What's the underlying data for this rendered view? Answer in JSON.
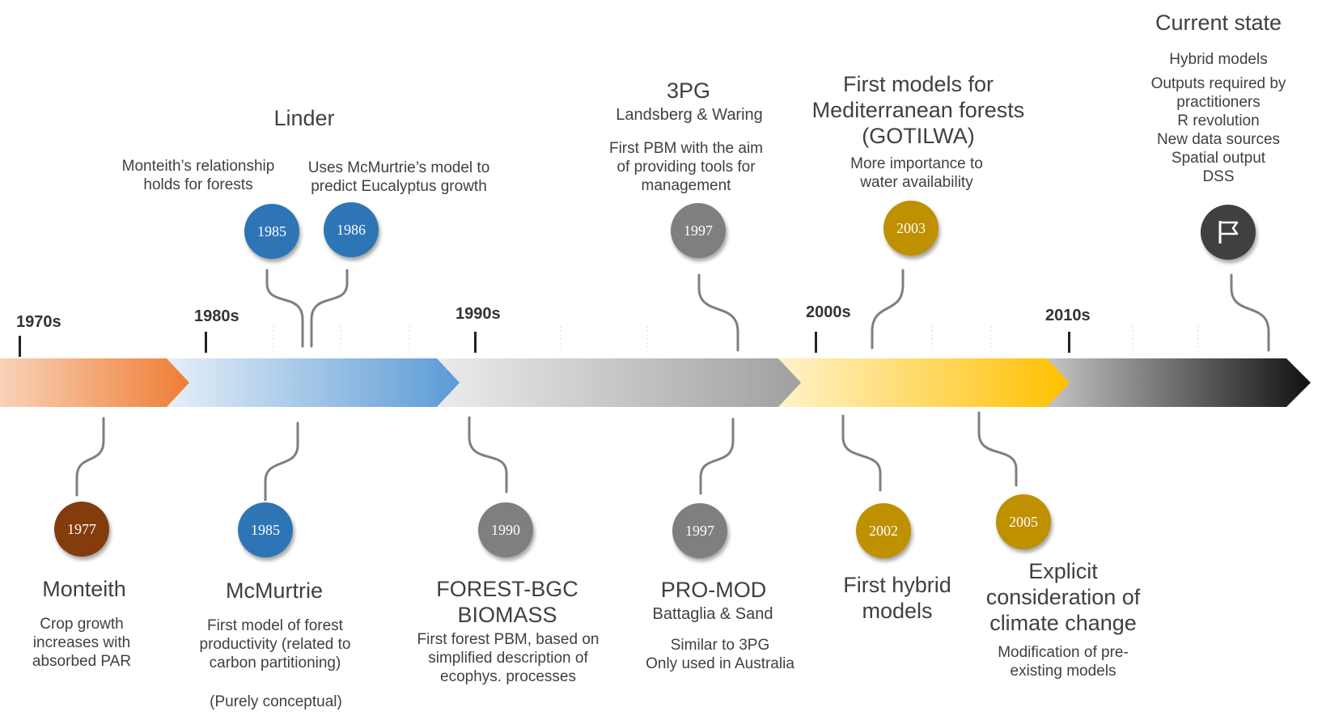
{
  "decades": [
    "1970s",
    "1980s",
    "1990s",
    "2000s",
    "2010s"
  ],
  "colors": {
    "seg1970": [
      "#f9d2b8",
      "#ee7d34"
    ],
    "seg1980": [
      "#dde9f6",
      "#5b9bd5"
    ],
    "seg1990": [
      "#e4e4e4",
      "#a6a6a6"
    ],
    "seg2000": [
      "#fff0c0",
      "#ffc000"
    ],
    "seg2010": [
      "#bfbfbf",
      "#1a1a1a"
    ],
    "blue": "#2e75b6",
    "gray": "#7f7f7f",
    "gold": "#bf9000",
    "brown": "#843c0c",
    "dark": "#404040"
  },
  "top": {
    "linder": {
      "title": "Linder",
      "left_desc": [
        "Monteith’s relationship",
        "holds for forests"
      ],
      "right_desc": [
        "Uses McMurtrie’s model to",
        "predict Eucalyptus growth"
      ],
      "year_a": "1985",
      "year_b": "1986"
    },
    "threepg": {
      "title": "3PG",
      "authors": "Landsberg & Waring",
      "desc": [
        "First PBM with the aim",
        "of providing tools for",
        "management"
      ],
      "year": "1997"
    },
    "gotilwa": {
      "title": [
        "First models for",
        "Mediterranean forests",
        "(GOTILWA)"
      ],
      "desc": [
        "More importance to",
        "water availability"
      ],
      "year": "2003"
    },
    "current": {
      "title": "Current state",
      "items": [
        "Hybrid models",
        "Outputs required by",
        "practitioners",
        "R revolution",
        "New data sources",
        "Spatial output",
        "DSS"
      ],
      "icon": "flag-icon"
    }
  },
  "bottom": {
    "monteith": {
      "year": "1977",
      "title": "Monteith",
      "desc": [
        "Crop growth",
        "increases with",
        "absorbed PAR"
      ]
    },
    "mcmurtrie": {
      "year": "1985",
      "title": "McMurtrie",
      "desc": [
        "First model of forest",
        "productivity (related to",
        "carbon partitioning)"
      ],
      "note": "(Purely conceptual)"
    },
    "forestbgc": {
      "year": "1990",
      "title": [
        "FOREST-BGC",
        "BIOMASS"
      ],
      "desc": [
        "First forest PBM, based on",
        "simplified description of",
        "ecophys. processes"
      ]
    },
    "promod": {
      "year": "1997",
      "title": "PRO-MOD",
      "authors": "Battaglia & Sand",
      "desc": [
        "Similar to 3PG",
        "Only used in Australia"
      ]
    },
    "hybrid": {
      "year": "2002",
      "title": [
        "First hybrid",
        "models"
      ]
    },
    "climate": {
      "year": "2005",
      "title": [
        "Explicit",
        "consideration of",
        "climate change"
      ],
      "desc": [
        "Modification of pre-",
        "existing models"
      ]
    }
  }
}
